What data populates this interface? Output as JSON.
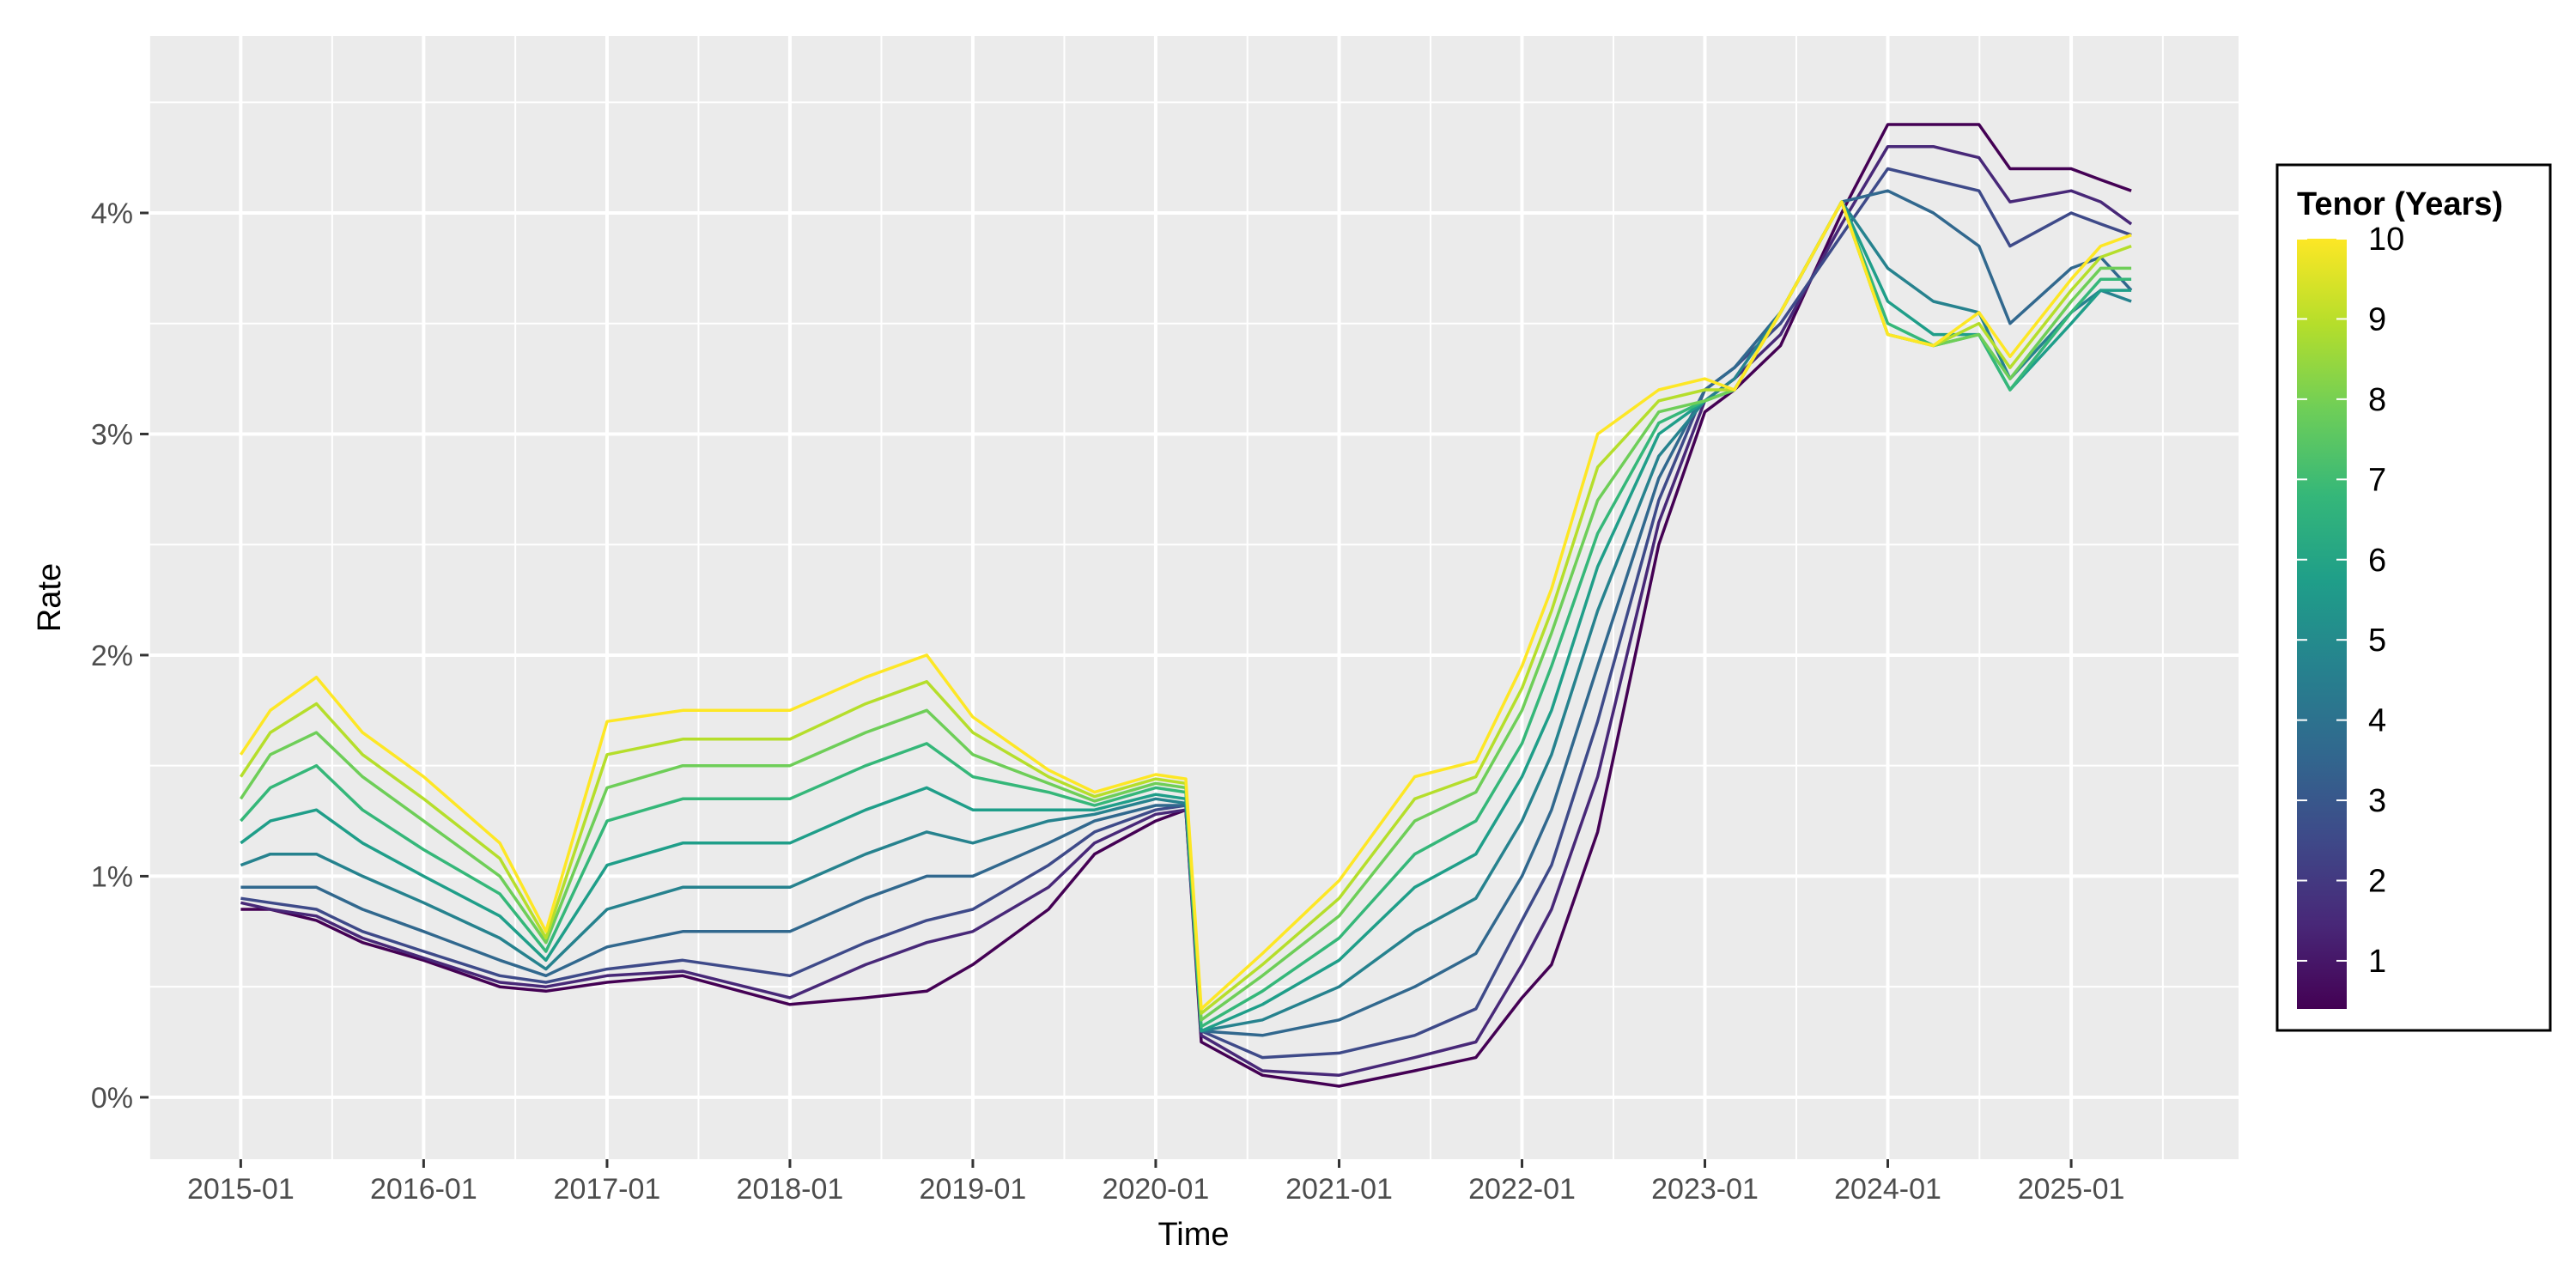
{
  "chart_data": {
    "type": "line",
    "xlabel": "Time",
    "ylabel": "Rate",
    "x_ticks": [
      "2015-01",
      "2016-01",
      "2017-01",
      "2018-01",
      "2019-01",
      "2020-01",
      "2021-01",
      "2022-01",
      "2023-01",
      "2024-01",
      "2025-01"
    ],
    "y_ticks": [
      "0%",
      "1%",
      "2%",
      "3%",
      "4%"
    ],
    "xlim": [
      "2014-07-01",
      "2025-12-01"
    ],
    "ylim": [
      -0.28,
      4.8
    ],
    "grid": true,
    "legend": {
      "title": "Tenor (Years)",
      "position": "right",
      "type": "colorbar",
      "labels": [
        "10",
        "9",
        "8",
        "7",
        "6",
        "5",
        "4",
        "3",
        "2",
        "1"
      ],
      "palette": [
        "#440154",
        "#482878",
        "#3e4a89",
        "#31688e",
        "#26828e",
        "#1f9e89",
        "#35b779",
        "#6ece58",
        "#b5de2b",
        "#fde725"
      ]
    },
    "x": [
      "2015-01-01",
      "2015-03-01",
      "2015-06-01",
      "2015-09-01",
      "2016-01-01",
      "2016-06-01",
      "2016-09-01",
      "2017-01-01",
      "2017-06-01",
      "2018-01-01",
      "2018-06-01",
      "2018-10-01",
      "2019-01-01",
      "2019-06-01",
      "2019-09-01",
      "2020-01-01",
      "2020-03-01",
      "2020-04-01",
      "2020-08-01",
      "2021-01-01",
      "2021-06-01",
      "2021-10-01",
      "2022-01-01",
      "2022-03-01",
      "2022-06-01",
      "2022-10-01",
      "2023-01-01",
      "2023-03-01",
      "2023-06-01",
      "2023-10-01",
      "2024-01-01",
      "2024-04-01",
      "2024-07-01",
      "2024-09-01",
      "2025-01-01",
      "2025-03-01",
      "2025-05-01"
    ],
    "series": [
      {
        "tenor": 1,
        "values": [
          0.85,
          0.85,
          0.8,
          0.7,
          0.62,
          0.5,
          0.48,
          0.52,
          0.55,
          0.42,
          0.45,
          0.48,
          0.6,
          0.85,
          1.1,
          1.25,
          1.3,
          0.25,
          0.1,
          0.05,
          0.12,
          0.18,
          0.45,
          0.6,
          1.2,
          2.5,
          3.1,
          3.2,
          3.4,
          4.0,
          4.4,
          4.4,
          4.4,
          4.2,
          4.2,
          4.15,
          4.1
        ]
      },
      {
        "tenor": 2,
        "values": [
          0.88,
          0.85,
          0.82,
          0.72,
          0.63,
          0.52,
          0.5,
          0.55,
          0.57,
          0.45,
          0.6,
          0.7,
          0.75,
          0.95,
          1.15,
          1.28,
          1.3,
          0.28,
          0.12,
          0.1,
          0.18,
          0.25,
          0.6,
          0.85,
          1.45,
          2.6,
          3.15,
          3.25,
          3.45,
          3.95,
          4.3,
          4.3,
          4.25,
          4.05,
          4.1,
          4.05,
          3.95
        ]
      },
      {
        "tenor": 3,
        "values": [
          0.9,
          0.88,
          0.85,
          0.75,
          0.66,
          0.55,
          0.52,
          0.58,
          0.62,
          0.55,
          0.7,
          0.8,
          0.85,
          1.05,
          1.2,
          1.3,
          1.32,
          0.3,
          0.18,
          0.2,
          0.28,
          0.4,
          0.8,
          1.05,
          1.7,
          2.7,
          3.2,
          3.3,
          3.5,
          3.9,
          4.2,
          4.15,
          4.1,
          3.85,
          4.0,
          3.95,
          3.9
        ]
      },
      {
        "tenor": 4,
        "values": [
          0.95,
          0.95,
          0.95,
          0.85,
          0.75,
          0.62,
          0.55,
          0.68,
          0.75,
          0.75,
          0.9,
          1.0,
          1.0,
          1.15,
          1.25,
          1.32,
          1.32,
          0.3,
          0.28,
          0.35,
          0.5,
          0.65,
          1.0,
          1.3,
          1.95,
          2.8,
          3.2,
          3.3,
          3.55,
          4.05,
          4.1,
          4.0,
          3.85,
          3.5,
          3.75,
          3.8,
          3.65
        ]
      },
      {
        "tenor": 5,
        "values": [
          1.05,
          1.1,
          1.1,
          1.0,
          0.88,
          0.72,
          0.58,
          0.85,
          0.95,
          0.95,
          1.1,
          1.2,
          1.15,
          1.25,
          1.28,
          1.35,
          1.33,
          0.3,
          0.35,
          0.5,
          0.75,
          0.9,
          1.25,
          1.55,
          2.2,
          2.9,
          3.15,
          3.25,
          3.55,
          4.05,
          3.75,
          3.6,
          3.55,
          3.25,
          3.55,
          3.65,
          3.6
        ]
      },
      {
        "tenor": 6,
        "values": [
          1.15,
          1.25,
          1.3,
          1.15,
          1.0,
          0.82,
          0.62,
          1.05,
          1.15,
          1.15,
          1.3,
          1.4,
          1.3,
          1.3,
          1.3,
          1.37,
          1.35,
          0.3,
          0.42,
          0.62,
          0.95,
          1.1,
          1.45,
          1.75,
          2.4,
          3.0,
          3.15,
          3.2,
          3.55,
          4.05,
          3.6,
          3.45,
          3.45,
          3.2,
          3.5,
          3.65,
          3.65
        ]
      },
      {
        "tenor": 7,
        "values": [
          1.25,
          1.4,
          1.5,
          1.3,
          1.12,
          0.92,
          0.66,
          1.25,
          1.35,
          1.35,
          1.5,
          1.6,
          1.45,
          1.38,
          1.32,
          1.4,
          1.38,
          0.32,
          0.48,
          0.72,
          1.1,
          1.25,
          1.6,
          1.95,
          2.55,
          3.05,
          3.15,
          3.2,
          3.55,
          4.05,
          3.5,
          3.4,
          3.45,
          3.2,
          3.55,
          3.7,
          3.7
        ]
      },
      {
        "tenor": 8,
        "values": [
          1.35,
          1.55,
          1.65,
          1.45,
          1.25,
          1.0,
          0.7,
          1.4,
          1.5,
          1.5,
          1.65,
          1.75,
          1.55,
          1.42,
          1.34,
          1.42,
          1.4,
          0.35,
          0.55,
          0.82,
          1.25,
          1.38,
          1.75,
          2.1,
          2.7,
          3.1,
          3.15,
          3.2,
          3.55,
          4.05,
          3.45,
          3.4,
          3.45,
          3.25,
          3.6,
          3.75,
          3.75
        ]
      },
      {
        "tenor": 9,
        "values": [
          1.45,
          1.65,
          1.78,
          1.55,
          1.35,
          1.08,
          0.72,
          1.55,
          1.62,
          1.62,
          1.78,
          1.88,
          1.65,
          1.45,
          1.36,
          1.44,
          1.42,
          0.38,
          0.6,
          0.9,
          1.35,
          1.45,
          1.85,
          2.2,
          2.85,
          3.15,
          3.2,
          3.2,
          3.55,
          4.05,
          3.45,
          3.4,
          3.5,
          3.3,
          3.65,
          3.8,
          3.85
        ]
      },
      {
        "tenor": 10,
        "values": [
          1.55,
          1.75,
          1.9,
          1.65,
          1.45,
          1.15,
          0.75,
          1.7,
          1.75,
          1.75,
          1.9,
          2.0,
          1.72,
          1.48,
          1.38,
          1.46,
          1.44,
          0.4,
          0.65,
          0.98,
          1.45,
          1.52,
          1.95,
          2.3,
          3.0,
          3.2,
          3.25,
          3.2,
          3.55,
          4.05,
          3.45,
          3.4,
          3.55,
          3.35,
          3.7,
          3.85,
          3.9
        ]
      }
    ]
  }
}
